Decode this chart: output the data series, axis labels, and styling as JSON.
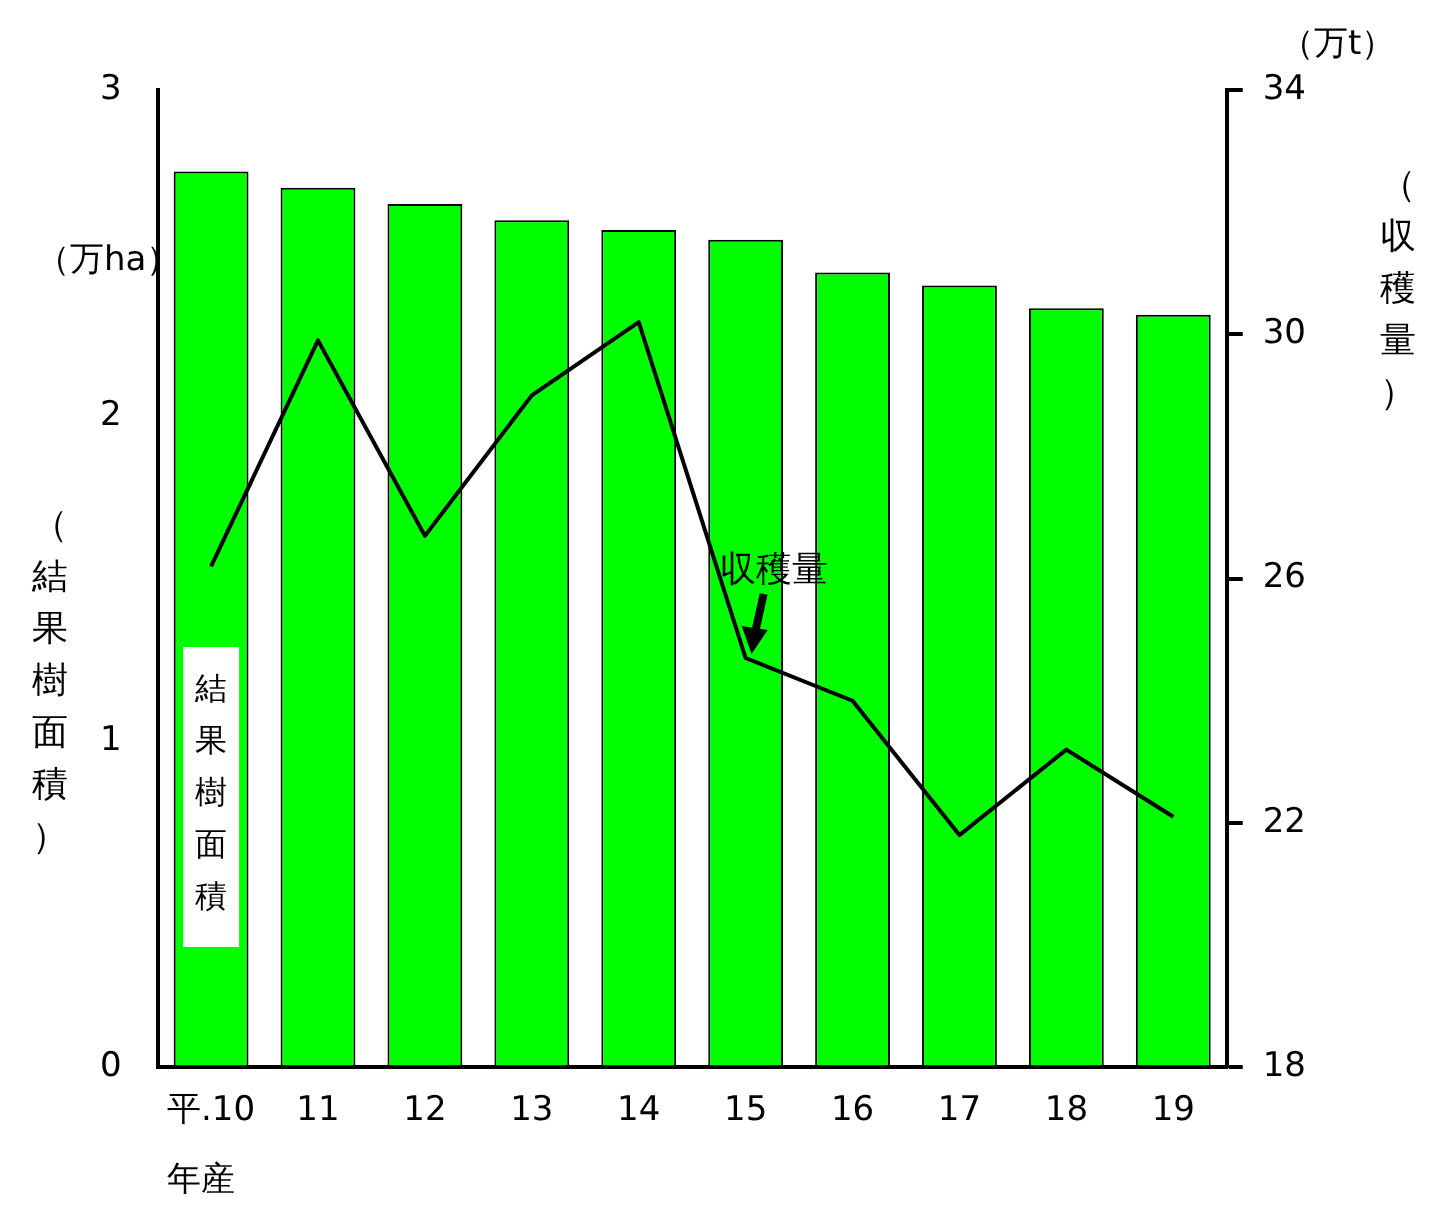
{
  "chart_data": {
    "type": "bar",
    "categories": [
      "平.10",
      "11",
      "12",
      "13",
      "14",
      "15",
      "16",
      "17",
      "18",
      "19"
    ],
    "xlabel": "年産",
    "ylabel": "（結果樹面積）",
    "y2label": "（収穫量）",
    "annotations": [
      "（万ha）",
      "（万t）"
    ],
    "ylim": [
      0,
      3
    ],
    "yticks": [
      0,
      1,
      2,
      3
    ],
    "y2lim": [
      18,
      34
    ],
    "y2ticks": [
      18,
      22,
      26,
      30,
      34
    ],
    "grid": false,
    "legend": false,
    "marker": "none",
    "line_style": "solid",
    "series": [
      {
        "name": "結果樹面積",
        "color": "#00ff00",
        "values": [
          2.75,
          2.7,
          2.65,
          2.6,
          2.57,
          2.54,
          2.44,
          2.4,
          2.33,
          2.31
        ]
      },
      {
        "name": "収穫量",
        "type": "line",
        "axis": "y2",
        "color": "#000000",
        "values": [
          26.2,
          29.9,
          26.7,
          29.0,
          30.2,
          24.7,
          24.0,
          21.8,
          23.2,
          22.1
        ]
      }
    ]
  }
}
